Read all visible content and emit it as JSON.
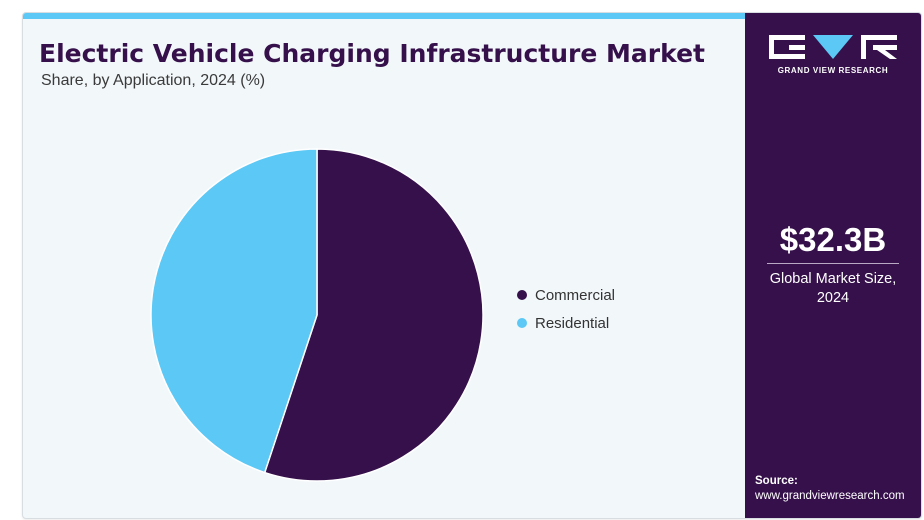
{
  "header": {
    "title": "Electric Vehicle Charging Infrastructure Market",
    "subtitle": "Share, by Application, 2024 (%)"
  },
  "chart_data": {
    "type": "pie",
    "title": "Electric Vehicle Charging Infrastructure Market",
    "subtitle": "Share, by Application, 2024 (%)",
    "categories": [
      "Commercial",
      "Residential"
    ],
    "values": [
      55.1,
      44.9
    ],
    "colors": [
      "#35104a",
      "#5bc8f5"
    ],
    "legend_position": "right"
  },
  "sidebar": {
    "logo_icon": "grand-view-research-logo",
    "brand": "GRAND VIEW RESEARCH",
    "kpi_value": "$32.3B",
    "kpi_label": "Global Market Size, 2024",
    "source_label": "Source:",
    "source_url": "www.grandviewresearch.com"
  },
  "colors": {
    "sidebar_bg": "#35104a",
    "accent": "#5bc8f5",
    "panel_bg": "#f2f7fa"
  }
}
